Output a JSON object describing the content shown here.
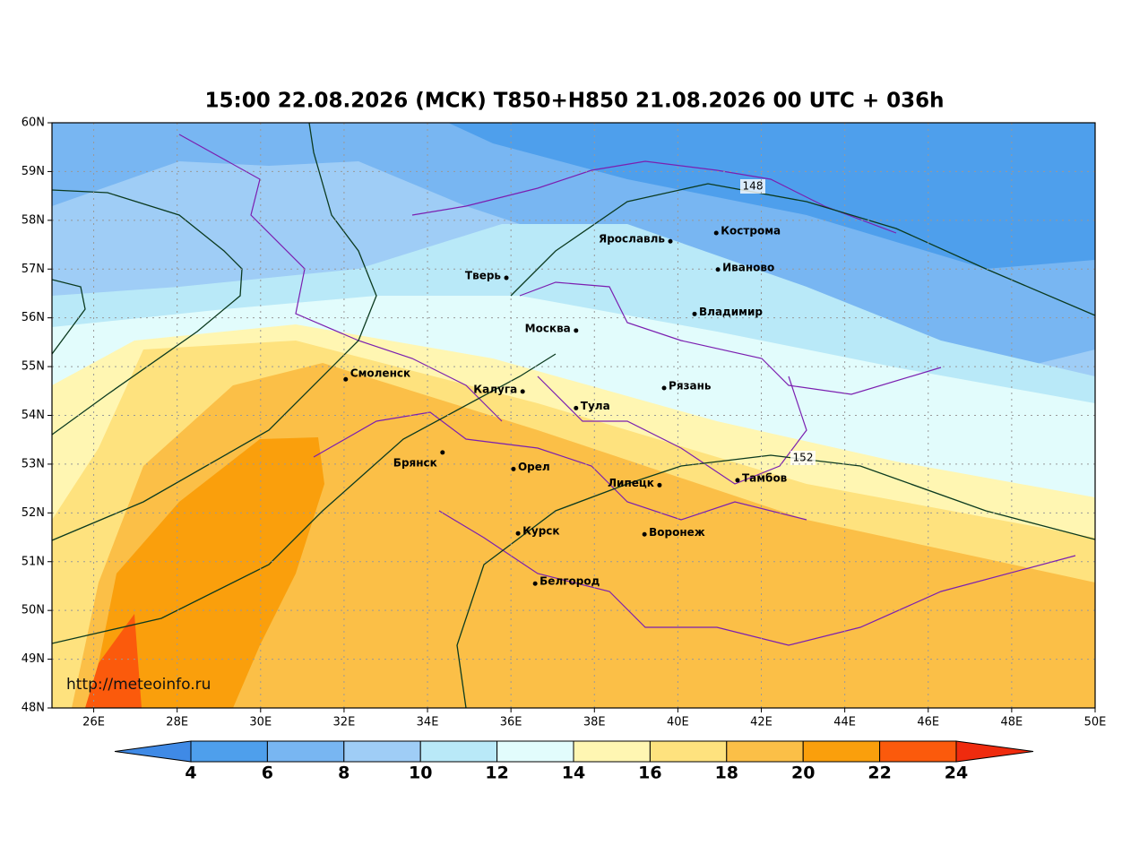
{
  "map": {
    "title": "15:00 22.08.2026 (МСК) T850+H850 21.08.2026 00 UTC + 036h",
    "lonlim": [
      25,
      50
    ],
    "latlim": [
      48,
      60
    ],
    "lon_ticks": [
      {
        "value": 26,
        "label": "26E"
      },
      {
        "value": 28,
        "label": "28E"
      },
      {
        "value": 30,
        "label": "30E"
      },
      {
        "value": 32,
        "label": "32E"
      },
      {
        "value": 34,
        "label": "34E"
      },
      {
        "value": 36,
        "label": "36E"
      },
      {
        "value": 38,
        "label": "38E"
      },
      {
        "value": 40,
        "label": "40E"
      },
      {
        "value": 42,
        "label": "42E"
      },
      {
        "value": 44,
        "label": "44E"
      },
      {
        "value": 46,
        "label": "46E"
      },
      {
        "value": 48,
        "label": "48E"
      },
      {
        "value": 50,
        "label": "50E"
      }
    ],
    "lat_ticks": [
      {
        "value": 48,
        "label": "48N"
      },
      {
        "value": 49,
        "label": "49N"
      },
      {
        "value": 50,
        "label": "50N"
      },
      {
        "value": 51,
        "label": "51N"
      },
      {
        "value": 52,
        "label": "52N"
      },
      {
        "value": 53,
        "label": "53N"
      },
      {
        "value": 54,
        "label": "54N"
      },
      {
        "value": 55,
        "label": "55N"
      },
      {
        "value": 56,
        "label": "56N"
      },
      {
        "value": 57,
        "label": "57N"
      },
      {
        "value": 58,
        "label": "58N"
      },
      {
        "value": 59,
        "label": "59N"
      },
      {
        "value": 60,
        "label": "60N"
      }
    ],
    "cities": [
      {
        "name": "Ярославль",
        "lon": 39.82,
        "lat": 57.57
      },
      {
        "name": "Кострома",
        "lon": 40.92,
        "lat": 57.74
      },
      {
        "name": "Иваново",
        "lon": 40.96,
        "lat": 56.99
      },
      {
        "name": "Тверь",
        "lon": 35.89,
        "lat": 56.82
      },
      {
        "name": "Владимир",
        "lon": 40.4,
        "lat": 56.08
      },
      {
        "name": "Москва",
        "lon": 37.56,
        "lat": 55.74
      },
      {
        "name": "Смоленск",
        "lon": 32.04,
        "lat": 54.74
      },
      {
        "name": "Калуга",
        "lon": 36.28,
        "lat": 54.49
      },
      {
        "name": "Рязань",
        "lon": 39.67,
        "lat": 54.56
      },
      {
        "name": "Тула",
        "lon": 37.56,
        "lat": 54.15
      },
      {
        "name": "Брянск",
        "lon": 34.36,
        "lat": 53.24
      },
      {
        "name": "Орел",
        "lon": 36.06,
        "lat": 52.9
      },
      {
        "name": "Липецк",
        "lon": 39.56,
        "lat": 52.57
      },
      {
        "name": "Тамбов",
        "lon": 41.43,
        "lat": 52.67
      },
      {
        "name": "Курск",
        "lon": 36.17,
        "lat": 51.58
      },
      {
        "name": "Воронеж",
        "lon": 39.2,
        "lat": 51.56
      },
      {
        "name": "Белгород",
        "lon": 36.58,
        "lat": 50.55
      }
    ],
    "contour_labels": [
      148,
      152
    ],
    "watermark": "http://meteoinfo.ru",
    "colorbar": {
      "ticks": [
        4,
        6,
        8,
        10,
        12,
        14,
        16,
        18,
        20,
        22,
        24
      ],
      "colors": [
        "#3f8ae6",
        "#4e9fec",
        "#78b6f2",
        "#9fcdf6",
        "#b9e9f8",
        "#e2fcfc",
        "#fff6b2",
        "#fee27e",
        "#fbbf47",
        "#fa9f0c",
        "#fb5a0c",
        "#ef2b0e"
      ]
    }
  }
}
